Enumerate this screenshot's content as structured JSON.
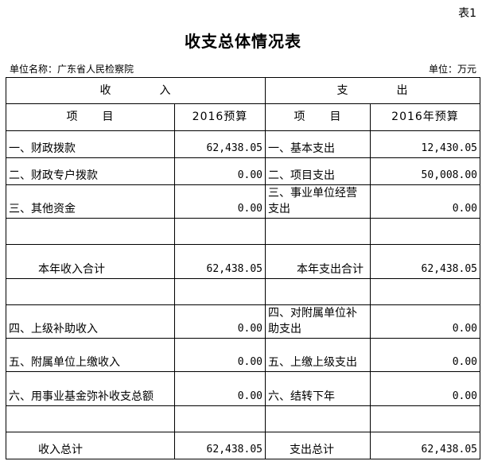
{
  "table_no": "表1",
  "title": "收支总体情况表",
  "unit_name": "单位名称：广东省人民检察院",
  "unit": "单位：万元",
  "header": {
    "income": "收　　　　入",
    "expense": "支　　　　出",
    "item": "项　　目",
    "income_budget": "2016预算",
    "expense_budget": "2016年预算"
  },
  "rows": [
    {
      "in_item": "一、财政拨款",
      "in_val": "62,438.05",
      "out_item": "一、基本支出",
      "out_val": "12,430.05"
    },
    {
      "in_item": "二、财政专户拨款",
      "in_val": "0.00",
      "out_item": "二、项目支出",
      "out_val": "50,008.00"
    },
    {
      "in_item": "三、其他资金",
      "in_val": "0.00",
      "out_item": "三、事业单位经营支出",
      "out_val": "0.00"
    },
    {
      "in_item": "",
      "in_val": "",
      "out_item": "",
      "out_val": ""
    },
    {
      "in_item": "本年收入合计",
      "in_val": "62,438.05",
      "out_item": "本年支出合计",
      "out_val": "62,438.05"
    },
    {
      "in_item": "",
      "in_val": "",
      "out_item": "",
      "out_val": ""
    },
    {
      "in_item": "四、上级补助收入",
      "in_val": "0.00",
      "out_item": "四、对附属单位补助支出",
      "out_val": "0.00"
    },
    {
      "in_item": "五、附属单位上缴收入",
      "in_val": "0.00",
      "out_item": "五、上缴上级支出",
      "out_val": "0.00"
    },
    {
      "in_item": "六、用事业基金弥补收支总额",
      "in_val": "0.00",
      "out_item": "六、结转下年",
      "out_val": "0.00"
    },
    {
      "in_item": "",
      "in_val": "",
      "out_item": "",
      "out_val": ""
    },
    {
      "in_item": "收入总计",
      "in_val": "62,438.05",
      "out_item": "支出总计",
      "out_val": "62,438.05"
    }
  ]
}
